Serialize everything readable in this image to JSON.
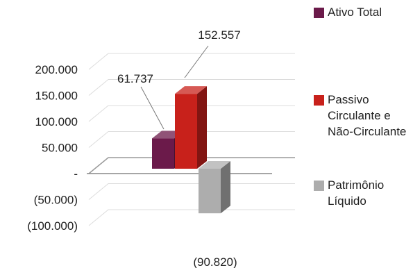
{
  "chart_data": {
    "type": "bar",
    "categories": [
      "Ativo Total",
      "Passivo Circulante e Não-Circulante",
      "Patrimônio Líquido"
    ],
    "values": [
      61737,
      152557,
      -90820
    ],
    "data_labels": [
      "61.737",
      "152.557",
      "(90.820)"
    ],
    "colors": [
      "#6B1A4A",
      "#C8211B",
      "#ADADAD"
    ],
    "ylim": [
      -100000,
      200000
    ],
    "y_ticks": [
      200000,
      150000,
      100000,
      50000,
      0,
      -50000,
      -100000
    ],
    "y_tick_labels": [
      "200.000",
      "150.000",
      "100.000",
      "50.000",
      "-",
      "(50.000)",
      "(100.000)"
    ],
    "grid": true,
    "style": "3d",
    "legend_position": "right",
    "legend": [
      {
        "label": "Ativo Total",
        "color": "#6B1A4A"
      },
      {
        "label": "Passivo Circulante e Não-Circulante",
        "color": "#C8211B"
      },
      {
        "label": "Patrimônio Líquido",
        "color": "#ADADAD"
      }
    ]
  }
}
